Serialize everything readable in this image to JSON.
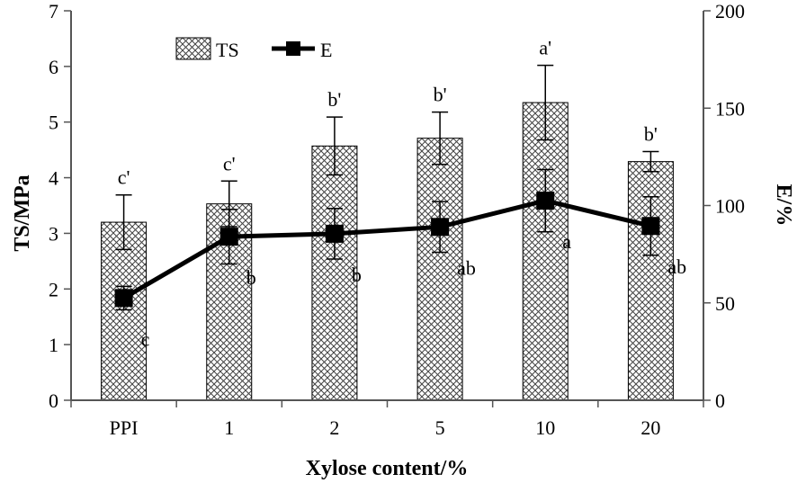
{
  "chart_data": {
    "type": "bar",
    "xlabel": "Xylose content/%",
    "ylabel_left": "TS/MPa",
    "ylabel_right": "E/%",
    "categories": [
      "PPI",
      "1",
      "2",
      "5",
      "10",
      "20"
    ],
    "ylim_left": [
      0,
      7
    ],
    "yticks_left": [
      "0",
      "1",
      "2",
      "3",
      "4",
      "5",
      "6",
      "7"
    ],
    "ylim_right": [
      0,
      200
    ],
    "yticks_right": [
      "0",
      "50",
      "100",
      "150",
      "200"
    ],
    "grid": false,
    "legend_position": "top-left",
    "series": [
      {
        "name": "TS",
        "kind": "bar",
        "axis": "left",
        "pattern": "crosshatch",
        "values": [
          3.2,
          3.53,
          4.57,
          4.71,
          5.35,
          4.29
        ],
        "errors": [
          0.49,
          0.41,
          0.52,
          0.47,
          0.67,
          0.18
        ],
        "labels": [
          "c'",
          "c'",
          "b'",
          "b'",
          "a'",
          "b'"
        ]
      },
      {
        "name": "E",
        "kind": "line",
        "axis": "right",
        "marker": "square",
        "values": [
          52.5,
          84,
          85.5,
          89,
          102.5,
          89.5
        ],
        "errors": [
          6,
          14,
          13,
          13,
          16,
          15
        ],
        "labels": [
          "c",
          "b",
          "b",
          "ab",
          "a",
          "ab"
        ]
      }
    ]
  }
}
